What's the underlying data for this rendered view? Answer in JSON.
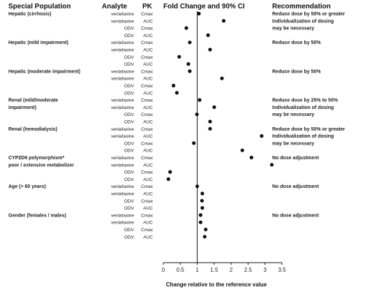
{
  "headers": {
    "population": "Special Population",
    "analyte": "Analyte",
    "pk": "PK",
    "fold": "Fold Change and 90% CI",
    "recommendation": "Recommendation"
  },
  "chart_data": {
    "type": "scatter",
    "xlabel": "Change relative to the reference value",
    "xlim": [
      0,
      3.5
    ],
    "xticks": [
      "0",
      "0.5",
      "1",
      "1.5",
      "2",
      "2.5",
      "3",
      "3.5"
    ],
    "reference_line": 1,
    "groups": [
      {
        "population": [
          "Hepatic (cirrhosis)"
        ],
        "recommendation": [
          "Reduce dose by 50% or greater",
          "Individualization of dosing",
          "may be necessary"
        ],
        "rows": [
          {
            "analyte": "venlafaxine",
            "pk": "Cmax",
            "value": 1.05
          },
          {
            "analyte": "venlafaxine",
            "pk": "AUC",
            "value": 1.78
          },
          {
            "analyte": "ODV",
            "pk": "Cmax",
            "value": 0.68
          },
          {
            "analyte": "ODV",
            "pk": "AUC",
            "value": 1.32
          }
        ]
      },
      {
        "population": [
          "Hepatic (mild impairment)"
        ],
        "recommendation": [
          "Reduce dose by 50%"
        ],
        "rows": [
          {
            "analyte": "venlafaxine",
            "pk": "Cmax",
            "value": 0.78
          },
          {
            "analyte": "venlafaxine",
            "pk": "AUC",
            "value": 1.38
          },
          {
            "analyte": "ODV",
            "pk": "Cmax",
            "value": 0.47
          },
          {
            "analyte": "ODV",
            "pk": "AUC",
            "value": 0.74
          }
        ]
      },
      {
        "population": [
          "Hepatic (moderate impairment)"
        ],
        "recommendation": [
          "Reduce dose by 50%"
        ],
        "rows": [
          {
            "analyte": "venlafaxine",
            "pk": "Cmax",
            "value": 0.78
          },
          {
            "analyte": "venlafaxine",
            "pk": "AUC",
            "value": 1.73
          },
          {
            "analyte": "ODV",
            "pk": "Cmax",
            "value": 0.3
          },
          {
            "analyte": "ODV",
            "pk": "AUC",
            "value": 0.4
          }
        ]
      },
      {
        "population": [
          "Renal (mild/moderate",
          "impairment)"
        ],
        "recommendation": [
          "Reduce dose by 25% to 50%",
          "Individualization of dosing",
          "may be necessary"
        ],
        "rows": [
          {
            "analyte": "venlafaxine",
            "pk": "Cmax",
            "value": 1.07
          },
          {
            "analyte": "venlafaxine",
            "pk": "AUC",
            "value": 1.5
          },
          {
            "analyte": "ODV",
            "pk": "Cmax",
            "value": 0.99
          },
          {
            "analyte": "ODV",
            "pk": "AUC",
            "value": 1.38
          }
        ]
      },
      {
        "population": [
          "Renal (hemodialysis)"
        ],
        "recommendation": [
          "Reduce dose by 50% or greater",
          "Individualization of dosing",
          "may be necessary"
        ],
        "rows": [
          {
            "analyte": "venlafaxine",
            "pk": "Cmax",
            "value": 1.38
          },
          {
            "analyte": "venlafaxine",
            "pk": "AUC",
            "value": 2.9
          },
          {
            "analyte": "ODV",
            "pk": "Cmax",
            "value": 0.9
          },
          {
            "analyte": "ODV",
            "pk": "AUC",
            "value": 2.33
          }
        ]
      },
      {
        "population": [
          "CYP2D6 polymorphism*",
          "poor / extensive metabolizer"
        ],
        "recommendation": [
          "No dose adjustment"
        ],
        "rows": [
          {
            "analyte": "venlafaxine",
            "pk": "Cmax",
            "value": 2.6
          },
          {
            "analyte": "venlafaxine",
            "pk": "AUC",
            "value": 3.2
          },
          {
            "analyte": "ODV",
            "pk": "Cmax",
            "value": 0.2
          },
          {
            "analyte": "ODV",
            "pk": "AUC",
            "value": 0.15
          }
        ]
      },
      {
        "population": [
          "Age (> 60 years)"
        ],
        "recommendation": [
          "No dose adjustment"
        ],
        "rows": [
          {
            "analyte": "venlafaxine",
            "pk": "Cmax",
            "value": 1.0
          },
          {
            "analyte": "venlafaxine",
            "pk": "AUC",
            "value": 1.15
          },
          {
            "analyte": "ODV",
            "pk": "Cmax",
            "value": 1.14
          },
          {
            "analyte": "ODV",
            "pk": "AUC",
            "value": 1.15
          }
        ]
      },
      {
        "population": [
          "Gender (females / males)"
        ],
        "recommendation": [
          "No dose adjustment"
        ],
        "rows": [
          {
            "analyte": "venlafaxine",
            "pk": "Cmax",
            "value": 1.1
          },
          {
            "analyte": "venlafaxine",
            "pk": "AUC",
            "value": 1.1
          },
          {
            "analyte": "ODV",
            "pk": "Cmax",
            "value": 1.25
          },
          {
            "analyte": "ODV",
            "pk": "AUC",
            "value": 1.22
          }
        ]
      }
    ]
  }
}
